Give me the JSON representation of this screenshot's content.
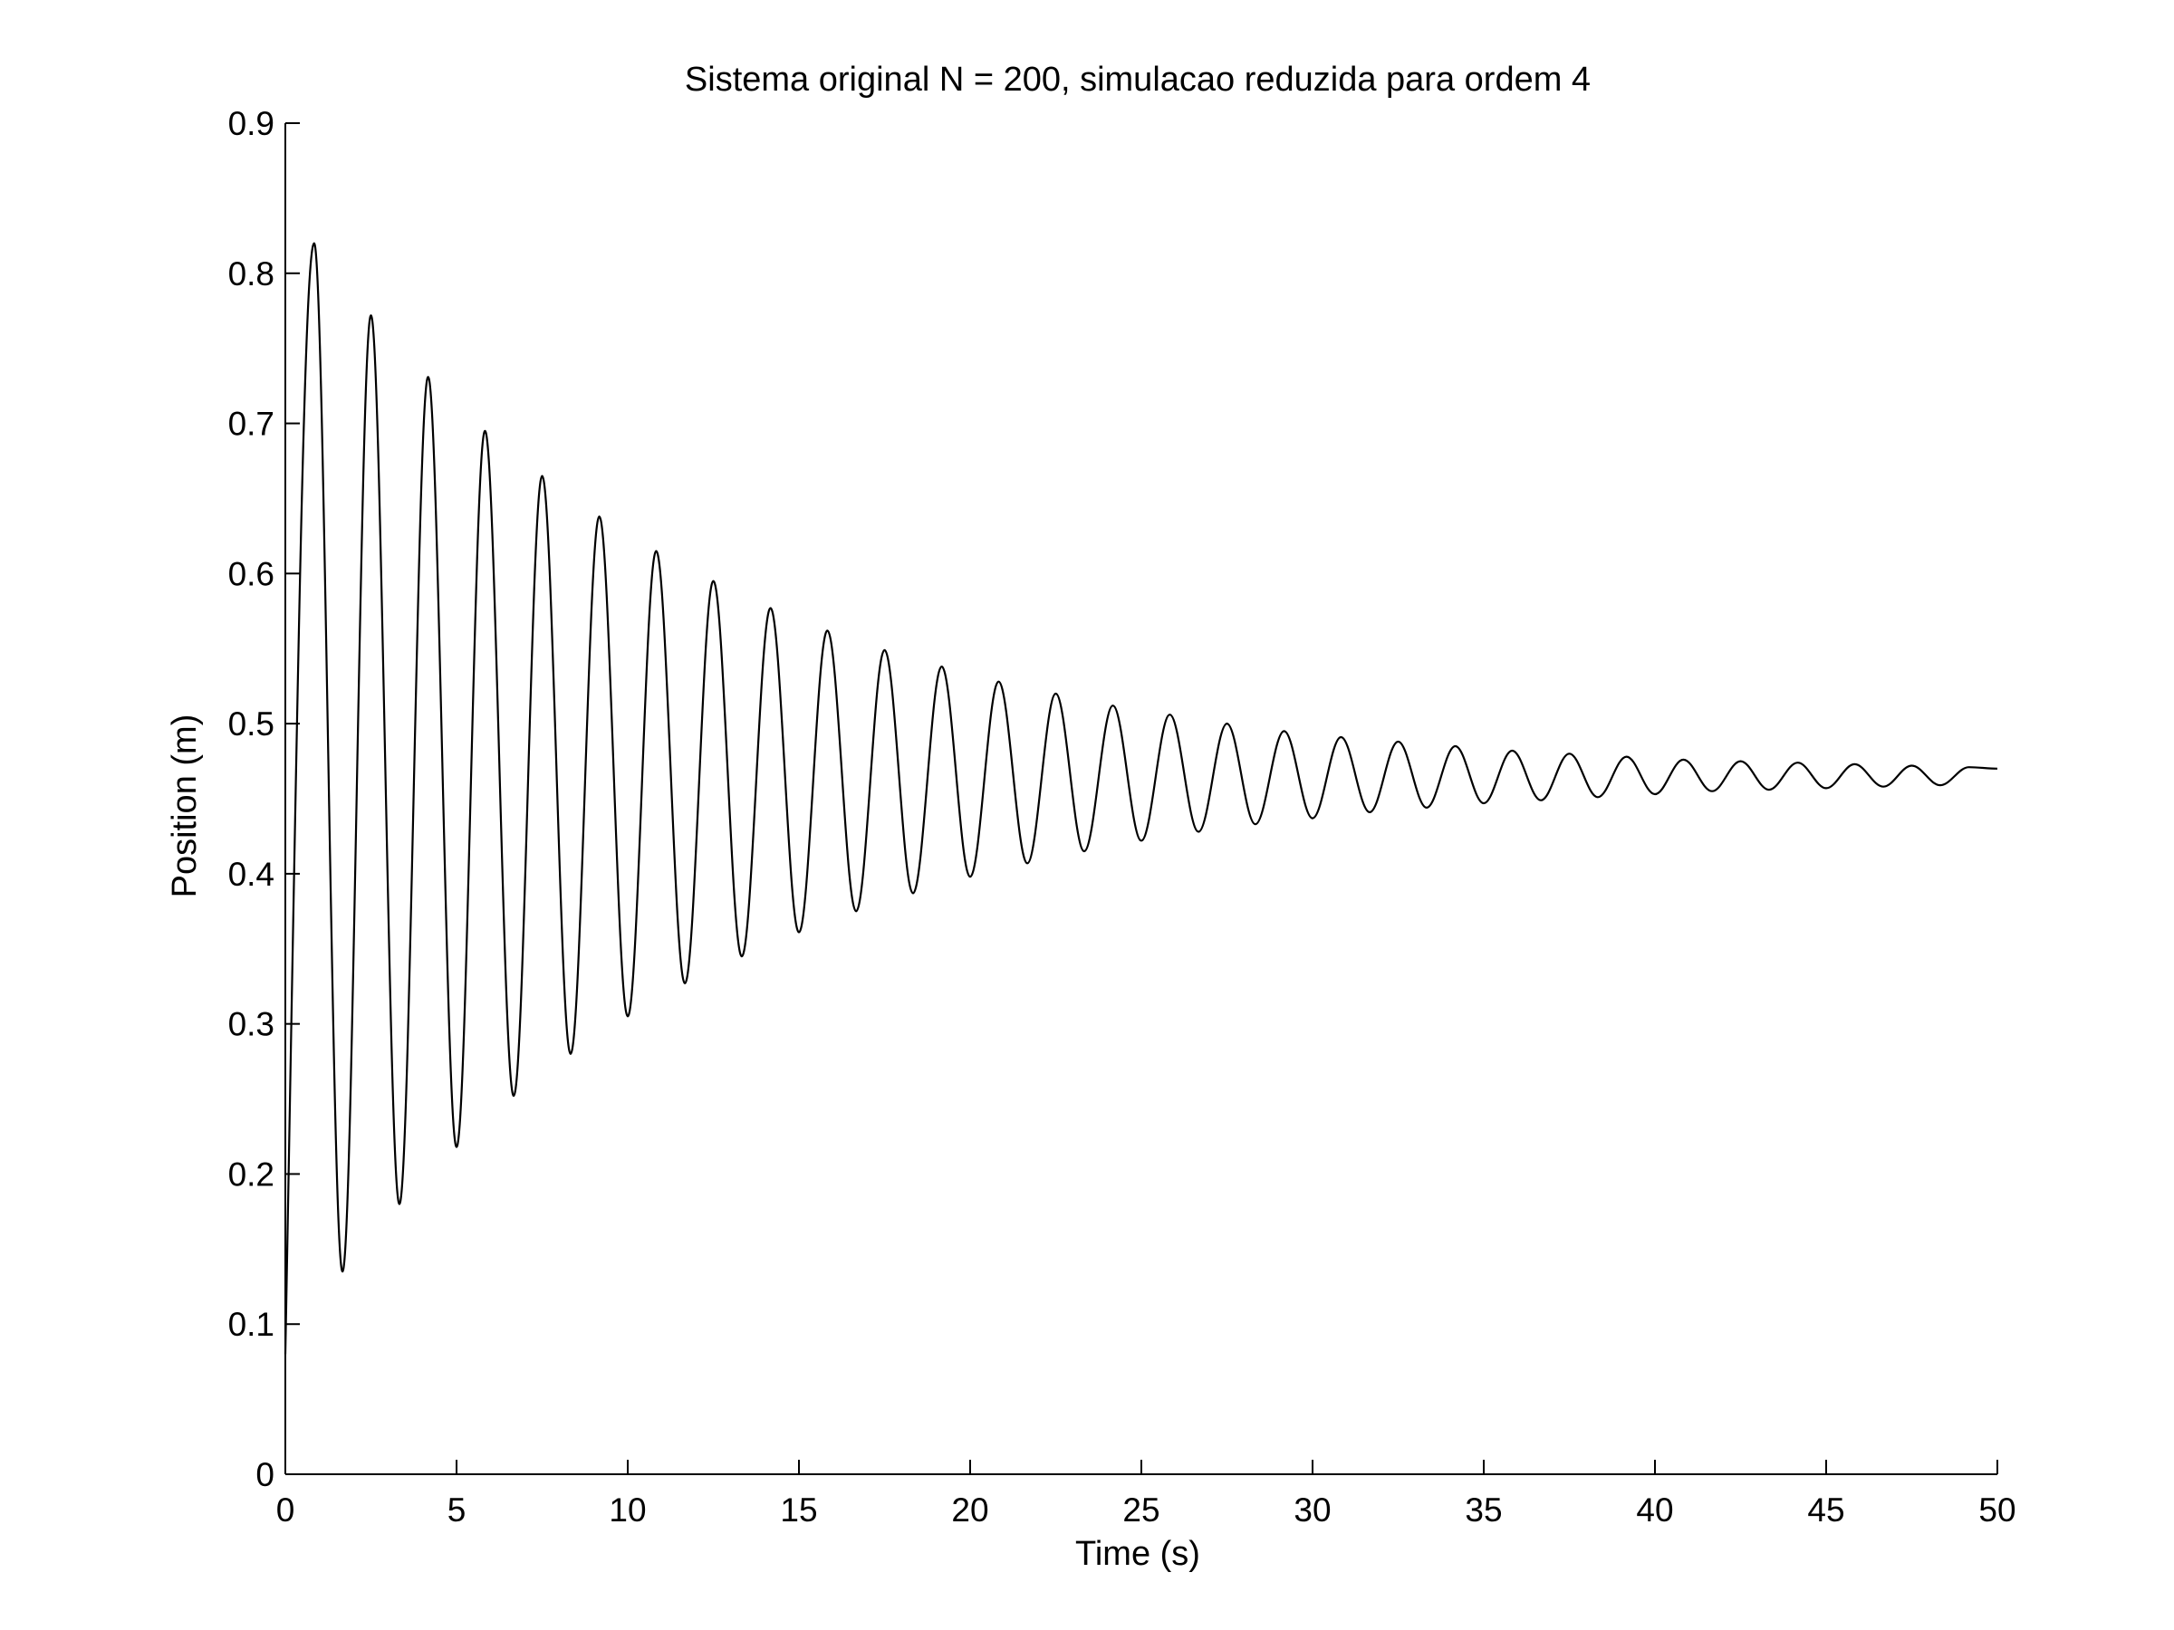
{
  "chart_data": {
    "type": "line",
    "title": "Sistema original N = 200, simulacao reduzida para ordem 4",
    "xlabel": "Time (s)",
    "ylabel": "Position (m)",
    "xlim": [
      0,
      50
    ],
    "ylim": [
      0,
      0.9
    ],
    "x_ticks": [
      "0",
      "5",
      "10",
      "15",
      "20",
      "25",
      "30",
      "35",
      "40",
      "45",
      "50"
    ],
    "y_ticks": [
      "0",
      "0.1",
      "0.2",
      "0.3",
      "0.4",
      "0.5",
      "0.6",
      "0.7",
      "0.8",
      "0.9"
    ],
    "grid": false,
    "box": "axes-left-bottom",
    "line_color": "#000000",
    "series": [
      {
        "x": [
          0,
          0.84,
          1.67,
          2.5,
          3.33,
          4.17,
          5.0,
          5.83,
          6.67,
          7.5,
          8.33,
          9.17,
          10.0,
          10.83,
          11.67,
          12.5,
          13.33,
          14.17,
          15.0,
          15.83,
          16.67,
          17.5,
          18.33,
          19.17,
          20.0,
          20.83,
          21.67,
          22.5,
          23.33,
          24.17,
          25.0,
          25.83,
          26.67,
          27.5,
          28.33,
          29.17,
          30.0,
          30.83,
          31.67,
          32.5,
          33.33,
          34.17,
          35.0,
          35.83,
          36.67,
          37.5,
          38.33,
          39.17,
          40.0,
          40.83,
          41.67,
          42.5,
          43.33,
          44.17,
          45.0,
          45.83,
          46.67,
          47.5,
          48.33,
          49.17,
          50.0
        ],
        "y": [
          0.08,
          0.82,
          0.135,
          0.772,
          0.18,
          0.731,
          0.218,
          0.695,
          0.252,
          0.665,
          0.28,
          0.638,
          0.305,
          0.615,
          0.327,
          0.595,
          0.345,
          0.577,
          0.361,
          0.562,
          0.375,
          0.549,
          0.387,
          0.538,
          0.398,
          0.528,
          0.407,
          0.52,
          0.415,
          0.512,
          0.422,
          0.506,
          0.428,
          0.5,
          0.433,
          0.495,
          0.437,
          0.491,
          0.441,
          0.488,
          0.444,
          0.485,
          0.447,
          0.482,
          0.449,
          0.48,
          0.451,
          0.478,
          0.453,
          0.476,
          0.455,
          0.475,
          0.456,
          0.474,
          0.457,
          0.473,
          0.458,
          0.472,
          0.459,
          0.471,
          0.47
        ]
      }
    ]
  }
}
